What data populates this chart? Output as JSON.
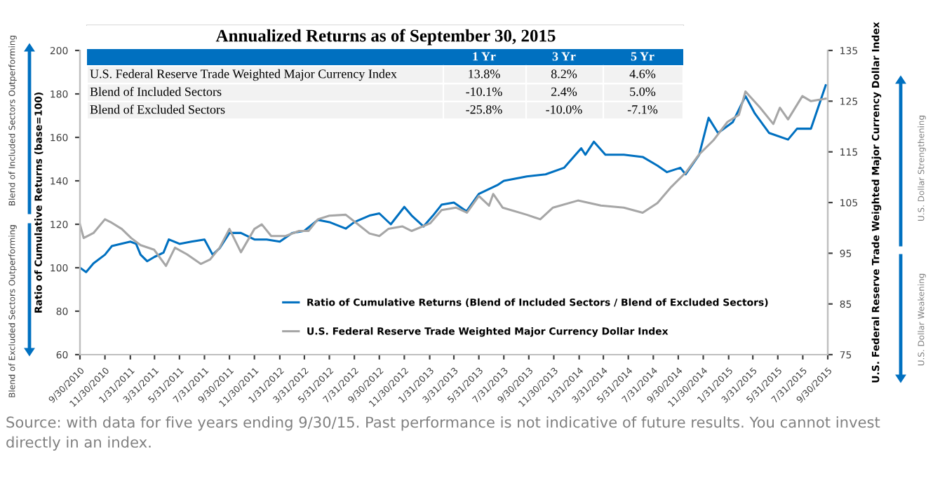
{
  "chart_data": {
    "type": "line",
    "title": "Annualized Returns as of September 30, 2015",
    "ylabel": "Ratio of Cumulative Returns (base=100)",
    "y2label": "U.S. Federal Reserve Trade Weighted Major Currency Dollar Index",
    "xlim": [
      "2010-09-30",
      "2015-09-30"
    ],
    "xticks": [
      {
        "value": "2010-09-30",
        "label": "9/30/2010"
      },
      {
        "value": "2010-11-30",
        "label": "11/30/2010"
      },
      {
        "value": "2011-01-31",
        "label": "1/31/2011"
      },
      {
        "value": "2011-03-31",
        "label": "3/31/2011"
      },
      {
        "value": "2011-05-31",
        "label": "5/31/2011"
      },
      {
        "value": "2011-07-31",
        "label": "7/31/2011"
      },
      {
        "value": "2011-09-30",
        "label": "9/30/2011"
      },
      {
        "value": "2011-11-30",
        "label": "11/30/2011"
      },
      {
        "value": "2012-01-31",
        "label": "1/31/2012"
      },
      {
        "value": "2012-03-31",
        "label": "3/31/2012"
      },
      {
        "value": "2012-05-31",
        "label": "5/31/2012"
      },
      {
        "value": "2012-07-31",
        "label": "7/31/2012"
      },
      {
        "value": "2012-09-30",
        "label": "9/30/2012"
      },
      {
        "value": "2012-11-30",
        "label": "11/30/2012"
      },
      {
        "value": "2013-01-31",
        "label": "1/31/2013"
      },
      {
        "value": "2013-03-31",
        "label": "3/31/2013"
      },
      {
        "value": "2013-05-31",
        "label": "5/31/2013"
      },
      {
        "value": "2013-07-31",
        "label": "7/31/2013"
      },
      {
        "value": "2013-09-30",
        "label": "9/30/2013"
      },
      {
        "value": "2013-11-30",
        "label": "11/30/2013"
      },
      {
        "value": "2014-01-31",
        "label": "1/31/2014"
      },
      {
        "value": "2014-03-31",
        "label": "3/31/2014"
      },
      {
        "value": "2014-05-31",
        "label": "5/31/2014"
      },
      {
        "value": "2014-07-31",
        "label": "7/31/2014"
      },
      {
        "value": "2014-09-30",
        "label": "9/30/2014"
      },
      {
        "value": "2014-11-30",
        "label": "11/30/2014"
      },
      {
        "value": "2015-01-31",
        "label": "1/31/2015"
      },
      {
        "value": "2015-03-31",
        "label": "3/31/2015"
      },
      {
        "value": "2015-05-31",
        "label": "5/31/2015"
      },
      {
        "value": "2015-07-31",
        "label": "7/31/2015"
      },
      {
        "value": "2015-09-30",
        "label": "9/30/2015"
      }
    ],
    "ylim": [
      60,
      200
    ],
    "yticks": [
      60,
      80,
      100,
      120,
      140,
      160,
      180,
      200
    ],
    "y2lim": [
      75,
      135
    ],
    "y2ticks": [
      75,
      85,
      95,
      105,
      115,
      125,
      135
    ],
    "grid": false,
    "legend": "bottom",
    "line_style": "solid",
    "marker": "none",
    "series": [
      {
        "name": "Ratio of Cumulative Returns (Blend of Included Sectors / Blend of Excluded Sectors)",
        "color": "#0070c0",
        "x": [
          "2010-09-30",
          "2010-10-15",
          "2010-11-02",
          "2010-11-30",
          "2010-12-17",
          "2011-01-31",
          "2011-02-14",
          "2011-02-25",
          "2011-03-13",
          "2011-03-31",
          "2011-04-22",
          "2011-05-05",
          "2011-05-31",
          "2011-06-29",
          "2011-07-31",
          "2011-08-20",
          "2011-09-06",
          "2011-09-30",
          "2011-10-28",
          "2011-11-30",
          "2011-12-30",
          "2012-01-31",
          "2012-03-01",
          "2012-03-31",
          "2012-05-03",
          "2012-05-31",
          "2012-07-10",
          "2012-07-31",
          "2012-09-06",
          "2012-09-30",
          "2012-10-28",
          "2012-11-30",
          "2012-12-18",
          "2013-01-16",
          "2013-02-08",
          "2013-03-01",
          "2013-03-31",
          "2013-05-01",
          "2013-05-31",
          "2013-07-15",
          "2013-07-31",
          "2013-09-25",
          "2013-11-10",
          "2013-12-25",
          "2014-02-05",
          "2014-02-15",
          "2014-03-08",
          "2014-04-05",
          "2014-05-20",
          "2014-07-05",
          "2014-08-10",
          "2014-09-02",
          "2014-10-05",
          "2014-10-18",
          "2014-11-20",
          "2014-12-13",
          "2015-01-05",
          "2015-02-10",
          "2015-03-13",
          "2015-04-05",
          "2015-05-10",
          "2015-06-25",
          "2015-07-17",
          "2015-08-20",
          "2015-09-25"
        ],
        "values": [
          100,
          98,
          102,
          106,
          110,
          112,
          111,
          106,
          103,
          105,
          107,
          113,
          111,
          112,
          113,
          106,
          109,
          116,
          116,
          113,
          113,
          112,
          116,
          117,
          122,
          121,
          118,
          121,
          124,
          125,
          120,
          128,
          124,
          119,
          124,
          129,
          130,
          126,
          134,
          138,
          140,
          142,
          143,
          146,
          155,
          152,
          158,
          152,
          152,
          151,
          147,
          144,
          146,
          143,
          152,
          169,
          162,
          167,
          179,
          171,
          162,
          159,
          164,
          164,
          184
        ]
      },
      {
        "name": "U.S. Federal Reserve Trade Weighted Major Currency Dollar Index",
        "color": "#a6a6a6",
        "axis": "y2",
        "x": [
          "2010-09-30",
          "2010-10-09",
          "2010-11-02",
          "2010-11-30",
          "2010-12-17",
          "2011-01-10",
          "2011-02-02",
          "2011-02-25",
          "2011-03-30",
          "2011-04-28",
          "2011-05-20",
          "2011-06-18",
          "2011-07-22",
          "2011-08-14",
          "2011-09-06",
          "2011-09-30",
          "2011-10-28",
          "2011-11-30",
          "2011-12-18",
          "2012-01-10",
          "2012-02-14",
          "2012-03-18",
          "2012-04-10",
          "2012-05-03",
          "2012-05-31",
          "2012-07-10",
          "2012-08-01",
          "2012-09-06",
          "2012-09-30",
          "2012-10-22",
          "2012-11-25",
          "2012-12-18",
          "2013-02-01",
          "2013-03-01",
          "2013-04-05",
          "2013-05-02",
          "2013-05-31",
          "2013-06-25",
          "2013-07-05",
          "2013-07-28",
          "2013-09-25",
          "2013-10-28",
          "2013-11-28",
          "2014-01-28",
          "2014-03-25",
          "2014-05-20",
          "2014-07-05",
          "2014-08-10",
          "2014-09-13",
          "2014-10-18",
          "2014-11-20",
          "2014-12-25",
          "2015-01-28",
          "2015-02-25",
          "2015-03-13",
          "2015-04-18",
          "2015-05-20",
          "2015-06-05",
          "2015-06-25",
          "2015-07-30",
          "2015-08-20",
          "2015-09-25"
        ],
        "values": [
          100.7,
          98,
          99,
          101.7,
          101,
          99.8,
          98,
          96.6,
          95.7,
          92.5,
          96.1,
          94.8,
          92.9,
          93.8,
          96.1,
          99.8,
          95.2,
          99.8,
          100.7,
          98.4,
          98.4,
          99.4,
          99.4,
          101.7,
          102.4,
          102.6,
          101.2,
          98.9,
          98.4,
          99.8,
          100.3,
          99.4,
          100.9,
          103.5,
          104,
          103,
          106.3,
          104.4,
          106.7,
          104,
          102.6,
          101.7,
          104,
          105.4,
          104.4,
          104,
          103,
          104.9,
          108.1,
          110.9,
          114.5,
          117.3,
          120.9,
          122.3,
          126.9,
          123.7,
          120.5,
          123.7,
          121.4,
          126,
          125,
          125.5
        ]
      }
    ],
    "annotations": [
      "1 Yr",
      "3 Yr",
      "5 Yr",
      "U.S. Federal Reserve Trade Weighted Major Currency Index",
      "13.8%",
      "8.2%",
      "4.6%",
      "Blend of Included Sectors",
      "-10.1%",
      "2.4%",
      "5.0%",
      "Blend of Excluded Sectors",
      "-25.8%",
      "-10.0%",
      "-7.1%",
      "Blend of Included Sectors Outperforming",
      "Blend of Excluded Sectors Outperforming",
      "U.S. Dollar Strengthening",
      "U.S. Dollar Weakening",
      "Source: with data for five years ending 9/30/15. Past performance is not indicative of future results. You cannot invest directly in an index."
    ]
  }
}
